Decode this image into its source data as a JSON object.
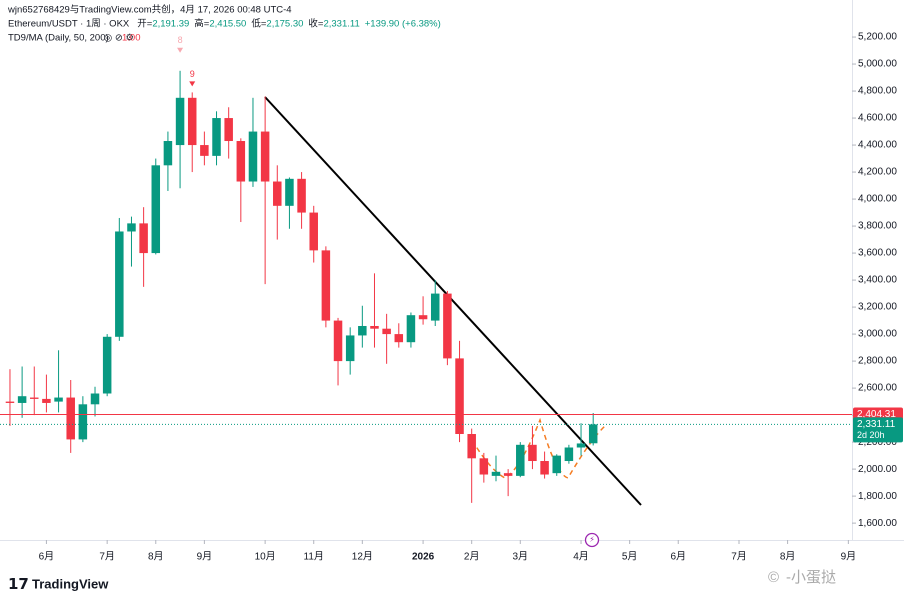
{
  "header": {
    "author": "wjn652768429与TradingView.com共创，4月 17, 2026 00:48 UTC-4",
    "symbol": "Ethereum/USDT · 1周 · OKX",
    "ohlc": [
      {
        "key": "开=",
        "value": "2,191.39"
      },
      {
        "key": "高=",
        "value": "2,415.50"
      },
      {
        "key": "低=",
        "value": "2,175.30"
      },
      {
        "key": "收=",
        "value": "2,331.11"
      }
    ],
    "change": "+139.90 (+6.38%)",
    "indicator": "TD9/MA (Daily, 50, 200)",
    "indicator_value": "1.00"
  },
  "footer": {
    "logo": "TradingView",
    "watermark": "-小蛋挞"
  },
  "chart_data": {
    "type": "candlestick",
    "up_color": "#089981",
    "down_color": "#f23645",
    "open": [
      2500,
      2490,
      2530,
      2520,
      2500,
      2530,
      2220,
      2480,
      2560,
      2980,
      3760,
      3820,
      3600,
      4250,
      4400,
      4750,
      4400,
      4320,
      4600,
      4430,
      4130,
      4500,
      4130,
      3950,
      4150,
      3900,
      3620,
      3100,
      2800,
      2990,
      3060,
      3040,
      3000,
      2940,
      3140,
      3100,
      3300,
      2820,
      2260,
      2080,
      1950,
      1970,
      1950,
      2180,
      2060,
      1970,
      2060,
      2160,
      2191.39
    ],
    "high": [
      2740,
      2760,
      2760,
      2700,
      2880,
      2660,
      2540,
      2610,
      3000,
      3860,
      3870,
      3940,
      4300,
      4500,
      4950,
      4790,
      4500,
      4650,
      4680,
      4450,
      4750,
      4760,
      4250,
      4160,
      4200,
      3950,
      3650,
      3120,
      3050,
      3210,
      3450,
      3150,
      3080,
      3160,
      3280,
      3400,
      3320,
      2950,
      2300,
      2120,
      2100,
      2000,
      2200,
      2320,
      2130,
      2110,
      2180,
      2340,
      2415.5
    ],
    "low": [
      2320,
      2380,
      2400,
      2420,
      2420,
      2120,
      2200,
      2390,
      2540,
      2950,
      3500,
      3350,
      3590,
      4060,
      4080,
      4200,
      4250,
      4250,
      4300,
      3830,
      4090,
      3370,
      3700,
      3780,
      3780,
      3530,
      3050,
      2620,
      2700,
      2900,
      2900,
      2780,
      2900,
      2900,
      3070,
      3060,
      2770,
      2200,
      1750,
      1900,
      1910,
      1800,
      1940,
      2000,
      1930,
      1950,
      2040,
      2100,
      2175.3
    ],
    "close": [
      2490,
      2540,
      2520,
      2490,
      2530,
      2220,
      2480,
      2560,
      2980,
      3760,
      3820,
      3600,
      4250,
      4430,
      4750,
      4400,
      4320,
      4600,
      4430,
      4130,
      4500,
      4130,
      3950,
      4150,
      3900,
      3620,
      3100,
      2800,
      2990,
      3060,
      3040,
      3000,
      2940,
      3140,
      3110,
      3300,
      2820,
      2260,
      2080,
      1960,
      1980,
      1950,
      2180,
      2060,
      1960,
      2100,
      2160,
      2190,
      2331.11
    ],
    "xlim": [
      -0.82,
      69.3
    ],
    "xticks": [
      {
        "value": 3,
        "label": "6月"
      },
      {
        "value": 8,
        "label": "7月"
      },
      {
        "value": 12,
        "label": "8月"
      },
      {
        "value": 16,
        "label": "9月"
      },
      {
        "value": 21,
        "label": "10月"
      },
      {
        "value": 25,
        "label": "11月"
      },
      {
        "value": 29,
        "label": "12月"
      },
      {
        "value": 34,
        "label": "2026"
      },
      {
        "value": 38,
        "label": "2月"
      },
      {
        "value": 42,
        "label": "3月"
      },
      {
        "value": 47,
        "label": "4月"
      },
      {
        "value": 51,
        "label": "5月"
      },
      {
        "value": 55,
        "label": "6月"
      },
      {
        "value": 60,
        "label": "7月"
      },
      {
        "value": 64,
        "label": "8月"
      },
      {
        "value": 69,
        "label": "9月"
      }
    ],
    "ylim": [
      1475,
      5267
    ],
    "yticks": [
      {
        "value": 1600,
        "label": "1,600.00"
      },
      {
        "value": 1800,
        "label": "1,800.00"
      },
      {
        "value": 2000,
        "label": "2,000.00"
      },
      {
        "value": 2200,
        "label": "2,200.00"
      },
      {
        "value": 2400,
        "label": "2,400.00"
      },
      {
        "value": 2600,
        "label": "2,600.00"
      },
      {
        "value": 2800,
        "label": "2,800.00"
      },
      {
        "value": 3000,
        "label": "3,000.00"
      },
      {
        "value": 3200,
        "label": "3,200.00"
      },
      {
        "value": 3400,
        "label": "3,400.00"
      },
      {
        "value": 3600,
        "label": "3,600.00"
      },
      {
        "value": 3800,
        "label": "3,800.00"
      },
      {
        "value": 4000,
        "label": "4,000.00"
      },
      {
        "value": 4200,
        "label": "4,200.00"
      },
      {
        "value": 4400,
        "label": "4,400.00"
      },
      {
        "value": 4600,
        "label": "4,600.00"
      },
      {
        "value": 4800,
        "label": "4,800.00"
      },
      {
        "value": 5000,
        "label": "5,000.00"
      },
      {
        "value": 5200,
        "label": "5,200.00"
      }
    ],
    "level_line": {
      "value": 2404.31,
      "label": "2,404.31",
      "color": "#f23645"
    },
    "last_price": {
      "value": 2331.11,
      "label": "2,331.11",
      "countdown": "2d 20h",
      "color": "#089981"
    },
    "td_labels": [
      "8",
      "9"
    ]
  }
}
